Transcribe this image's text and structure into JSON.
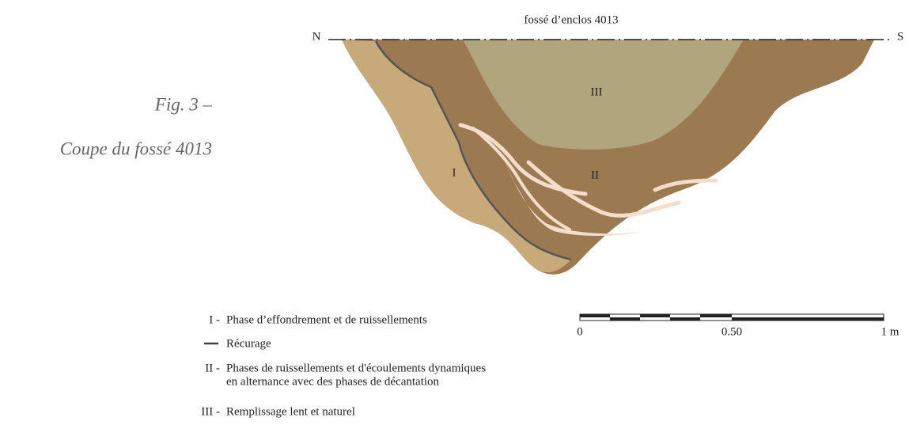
{
  "figure": {
    "label": "Fig. 3 –",
    "caption": "Coupe du fossé 4013"
  },
  "section": {
    "title": "fossé d’enclos 4013",
    "north": "N",
    "south": "S",
    "zones": [
      "I",
      "II",
      "III"
    ]
  },
  "legend": [
    {
      "code": "I -",
      "lines": [
        "Phase d’effondrement et de ruissellements"
      ]
    },
    {
      "lines": [
        "Récurage"
      ]
    },
    {
      "code": "II -",
      "lines": [
        "Phases de ruissellements et d'écoulements dynamiques",
        "en alternance avec des phases de décantation"
      ]
    },
    {
      "code": "III -",
      "lines": [
        "Remplissage lent et naturel"
      ]
    }
  ],
  "scale": {
    "labels": [
      "0",
      "0.50",
      "1 m"
    ]
  }
}
